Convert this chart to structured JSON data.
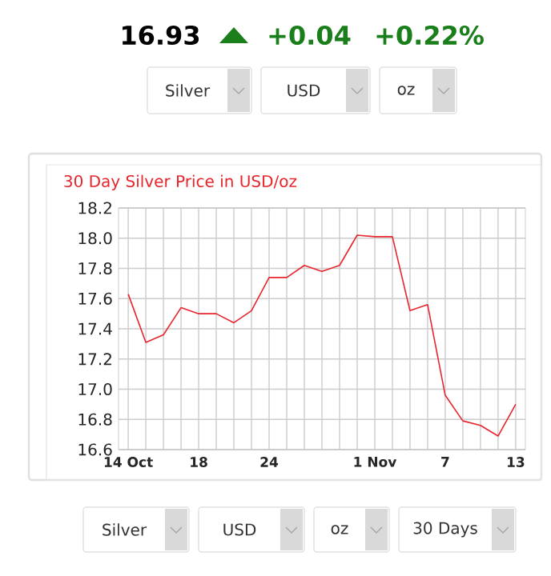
{
  "chart_data": {
    "type": "line",
    "title": "30 Day Silver Price in USD/oz",
    "categories": [
      "14 Oct",
      null,
      null,
      null,
      "18",
      null,
      null,
      null,
      "24",
      null,
      null,
      null,
      null,
      null,
      "1 Nov",
      null,
      null,
      null,
      "7",
      null,
      null,
      null,
      "13"
    ],
    "values": [
      17.63,
      17.31,
      17.36,
      17.54,
      17.5,
      17.5,
      17.44,
      17.52,
      17.74,
      17.74,
      17.82,
      17.78,
      17.82,
      18.02,
      18.01,
      18.01,
      17.52,
      17.56,
      16.96,
      16.79,
      16.76,
      16.69,
      16.9
    ],
    "color": "#e8242c",
    "ylim": [
      16.6,
      18.2
    ],
    "yticks": [
      16.6,
      16.8,
      {
        "value": 17,
        "label": "17.0"
      },
      17.2,
      17.4,
      17.6,
      17.8,
      {
        "value": 18,
        "label": "18.0"
      },
      18.2
    ],
    "grid": true,
    "annotations": [
      "16.93",
      "+0.04",
      "+0.22%",
      "Silver",
      "USD",
      "oz",
      "Silver",
      "USD",
      "oz",
      "30 Days"
    ]
  }
}
